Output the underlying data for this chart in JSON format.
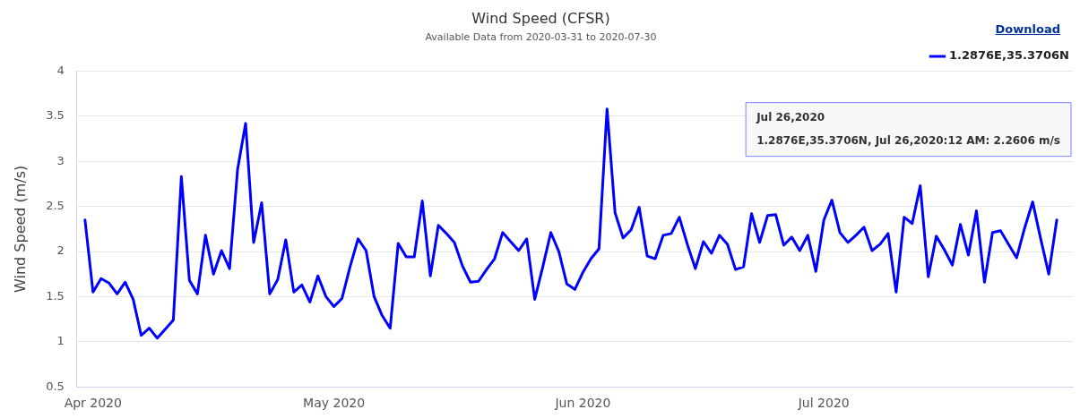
{
  "chart_data": {
    "type": "line",
    "title": "Wind Speed (CFSR)",
    "subtitle": "Available Data from 2020-03-31 to 2020-07-30",
    "ylabel": "Wind Speed (m/s)",
    "x": [
      "2020-03-31",
      "2020-04-01",
      "2020-04-02",
      "2020-04-03",
      "2020-04-04",
      "2020-04-05",
      "2020-04-06",
      "2020-04-07",
      "2020-04-08",
      "2020-04-09",
      "2020-04-10",
      "2020-04-11",
      "2020-04-12",
      "2020-04-13",
      "2020-04-14",
      "2020-04-15",
      "2020-04-16",
      "2020-04-17",
      "2020-04-18",
      "2020-04-19",
      "2020-04-20",
      "2020-04-21",
      "2020-04-22",
      "2020-04-23",
      "2020-04-24",
      "2020-04-25",
      "2020-04-26",
      "2020-04-27",
      "2020-04-28",
      "2020-04-29",
      "2020-04-30",
      "2020-05-01",
      "2020-05-02",
      "2020-05-03",
      "2020-05-04",
      "2020-05-05",
      "2020-05-06",
      "2020-05-07",
      "2020-05-08",
      "2020-05-09",
      "2020-05-10",
      "2020-05-11",
      "2020-05-12",
      "2020-05-13",
      "2020-05-14",
      "2020-05-15",
      "2020-05-16",
      "2020-05-17",
      "2020-05-18",
      "2020-05-19",
      "2020-05-20",
      "2020-05-21",
      "2020-05-22",
      "2020-05-23",
      "2020-05-24",
      "2020-05-25",
      "2020-05-26",
      "2020-05-27",
      "2020-05-28",
      "2020-05-29",
      "2020-05-30",
      "2020-05-31",
      "2020-06-01",
      "2020-06-02",
      "2020-06-03",
      "2020-06-04",
      "2020-06-05",
      "2020-06-06",
      "2020-06-07",
      "2020-06-08",
      "2020-06-09",
      "2020-06-10",
      "2020-06-11",
      "2020-06-12",
      "2020-06-13",
      "2020-06-14",
      "2020-06-15",
      "2020-06-16",
      "2020-06-17",
      "2020-06-18",
      "2020-06-19",
      "2020-06-20",
      "2020-06-21",
      "2020-06-22",
      "2020-06-23",
      "2020-06-24",
      "2020-06-25",
      "2020-06-26",
      "2020-06-27",
      "2020-06-28",
      "2020-06-29",
      "2020-06-30",
      "2020-07-01",
      "2020-07-02",
      "2020-07-03",
      "2020-07-04",
      "2020-07-05",
      "2020-07-06",
      "2020-07-07",
      "2020-07-08",
      "2020-07-09",
      "2020-07-10",
      "2020-07-11",
      "2020-07-12",
      "2020-07-13",
      "2020-07-14",
      "2020-07-15",
      "2020-07-16",
      "2020-07-17",
      "2020-07-18",
      "2020-07-19",
      "2020-07-20",
      "2020-07-21",
      "2020-07-22",
      "2020-07-23",
      "2020-07-24",
      "2020-07-25",
      "2020-07-26",
      "2020-07-27",
      "2020-07-28",
      "2020-07-29",
      "2020-07-30"
    ],
    "series": [
      {
        "name": "1.2876E,35.3706N",
        "color": "#0000ff",
        "values": [
          2.35,
          1.55,
          1.7,
          1.65,
          1.53,
          1.66,
          1.47,
          1.07,
          1.15,
          1.04,
          1.14,
          1.24,
          2.83,
          1.68,
          1.53,
          2.18,
          1.75,
          2.01,
          1.81,
          2.91,
          3.42,
          2.1,
          2.54,
          1.53,
          1.69,
          2.13,
          1.55,
          1.63,
          1.44,
          1.73,
          1.5,
          1.39,
          1.48,
          1.83,
          2.14,
          2.01,
          1.5,
          1.29,
          1.15,
          2.09,
          1.94,
          1.94,
          2.56,
          1.73,
          2.29,
          2.2,
          2.1,
          1.84,
          1.66,
          1.67,
          1.8,
          1.92,
          2.21,
          2.11,
          2.01,
          2.14,
          1.47,
          1.83,
          2.21,
          2.0,
          1.64,
          1.58,
          1.77,
          1.92,
          2.03,
          3.58,
          2.43,
          2.15,
          2.24,
          2.49,
          1.95,
          1.92,
          2.18,
          2.2,
          2.38,
          2.08,
          1.81,
          2.11,
          1.98,
          2.18,
          2.08,
          1.8,
          1.83,
          2.42,
          2.1,
          2.4,
          2.41,
          2.07,
          2.16,
          2.01,
          2.18,
          1.78,
          2.35,
          2.57,
          2.21,
          2.1,
          2.18,
          2.27,
          2.01,
          2.08,
          2.2,
          1.55,
          2.38,
          2.31,
          2.73,
          1.72,
          2.17,
          2.02,
          1.85,
          2.3,
          1.96,
          2.45,
          1.66,
          2.21,
          2.23,
          2.08,
          1.93,
          2.2606,
          2.55,
          2.14,
          1.75,
          2.35
        ]
      }
    ],
    "xlim": [
      "2020-03-30",
      "2020-08-01"
    ],
    "xticks": [
      {
        "value": "2020-04-01",
        "label": "Apr 2020"
      },
      {
        "value": "2020-05-01",
        "label": "May 2020"
      },
      {
        "value": "2020-06-01",
        "label": "Jun 2020"
      },
      {
        "value": "2020-07-01",
        "label": "Jul 2020"
      }
    ],
    "ylim": [
      0.5,
      4
    ],
    "yticks": [
      0.5,
      1,
      1.5,
      2,
      2.5,
      3,
      3.5,
      4
    ],
    "grid": "y",
    "legend": "top right",
    "marker": "none",
    "line_style": "solid",
    "annotations": [
      "Download",
      "Jul 26,2020",
      "1.2876E,35.3706N, Jul 26,2020:12 AM: 2.2606 m/s"
    ]
  }
}
